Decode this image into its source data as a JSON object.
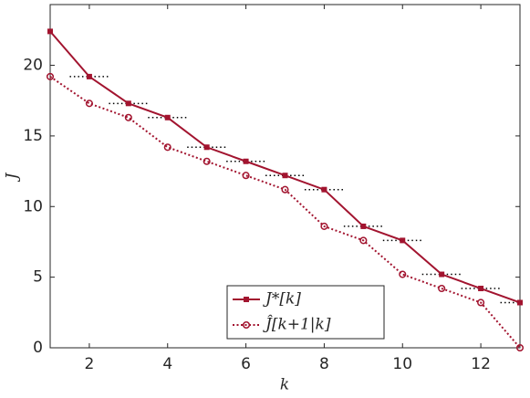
{
  "chart_data": {
    "type": "line",
    "x": [
      1,
      2,
      3,
      4,
      5,
      6,
      7,
      8,
      9,
      10,
      11,
      12,
      13
    ],
    "series": [
      {
        "name": "J*[k]",
        "color": "#a2142f",
        "values": [
          22.4,
          19.2,
          17.3,
          16.3,
          14.2,
          13.2,
          12.2,
          11.2,
          8.6,
          7.6,
          5.2,
          4.2,
          3.2
        ]
      },
      {
        "name": "Ĵ[k+1|k]",
        "color": "#a2142f",
        "values": [
          19.2,
          17.3,
          16.3,
          14.2,
          13.2,
          12.2,
          11.2,
          8.6,
          7.6,
          5.2,
          4.2,
          3.2,
          0
        ]
      }
    ],
    "xlabel": "k",
    "ylabel": "J",
    "xlim": [
      1,
      13
    ],
    "ylim": [
      0,
      24.3
    ],
    "xticks": [
      2,
      4,
      6,
      8,
      10,
      12
    ],
    "yticks": [
      0,
      5,
      10,
      15,
      20
    ],
    "legend": "lower center"
  }
}
